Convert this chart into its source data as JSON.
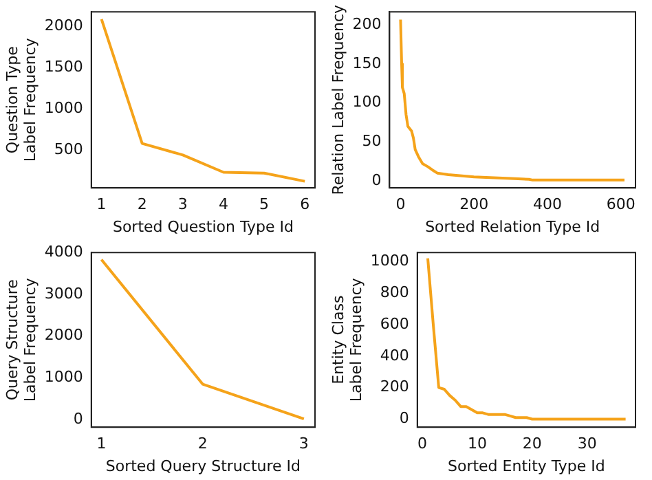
{
  "chart_data": [
    {
      "type": "line",
      "xlabel": "Sorted Question Type Id",
      "ylabel": "Question Type\nLabel Frequency",
      "xlim": [
        0.75,
        6.25
      ],
      "xticks": [
        1,
        2,
        3,
        4,
        5,
        6
      ],
      "ylim": [
        40,
        2180
      ],
      "yticks": [
        500,
        1000,
        1500,
        2000
      ],
      "grid": false,
      "legend": false,
      "marker": "none",
      "series": [
        {
          "color": "#f5a31a",
          "x": [
            1,
            2,
            3,
            4,
            5,
            6
          ],
          "values": [
            2090,
            580,
            440,
            230,
            220,
            120
          ]
        }
      ]
    },
    {
      "type": "line",
      "xlabel": "Sorted Relation Type Id",
      "ylabel": "Relation Label Frequency",
      "xlim": [
        -30,
        640
      ],
      "xticks": [
        0,
        200,
        400,
        600
      ],
      "ylim": [
        -9,
        217
      ],
      "yticks": [
        0,
        50,
        100,
        150,
        200
      ],
      "grid": false,
      "legend": false,
      "marker": "none",
      "series": [
        {
          "color": "#f5a31a",
          "x": [
            0,
            3,
            5,
            10,
            15,
            20,
            30,
            35,
            40,
            50,
            60,
            75,
            90,
            100,
            130,
            200,
            300,
            350,
            360,
            610
          ],
          "values": [
            207,
            150,
            120,
            112,
            85,
            70,
            64,
            55,
            40,
            30,
            22,
            18,
            13,
            10,
            8,
            5,
            3,
            2,
            1,
            1
          ]
        }
      ]
    },
    {
      "type": "line",
      "xlabel": "Sorted Query Structure Id",
      "ylabel": "Query Structure\nLabel Frequency",
      "xlim": [
        0.9,
        3.11
      ],
      "xticks": [
        1,
        2,
        3
      ],
      "ylim": [
        -180,
        4000
      ],
      "yticks": [
        0,
        1000,
        2000,
        3000,
        4000
      ],
      "grid": false,
      "legend": false,
      "marker": "none",
      "series": [
        {
          "color": "#f5a31a",
          "x": [
            1,
            2,
            3
          ],
          "values": [
            3830,
            850,
            20
          ]
        }
      ]
    },
    {
      "type": "line",
      "xlabel": "Sorted Entity Type Id",
      "ylabel": "Entity Class\nLabel Frequency",
      "xlim": [
        -0.9,
        38.8
      ],
      "xticks": [
        0,
        10,
        20,
        30
      ],
      "ylim": [
        -51,
        1057
      ],
      "yticks": [
        0,
        200,
        400,
        600,
        800,
        1000
      ],
      "grid": false,
      "legend": false,
      "marker": "none",
      "series": [
        {
          "color": "#f5a31a",
          "x": [
            1,
            2,
            3,
            4,
            5,
            6,
            7,
            8,
            9,
            10,
            11,
            12,
            13,
            14,
            15,
            16,
            17,
            18,
            19,
            20,
            21,
            25,
            30,
            37
          ],
          "values": [
            1020,
            600,
            200,
            190,
            150,
            120,
            80,
            80,
            60,
            40,
            40,
            30,
            30,
            30,
            30,
            20,
            10,
            10,
            10,
            0,
            0,
            0,
            0,
            0
          ]
        }
      ]
    }
  ]
}
